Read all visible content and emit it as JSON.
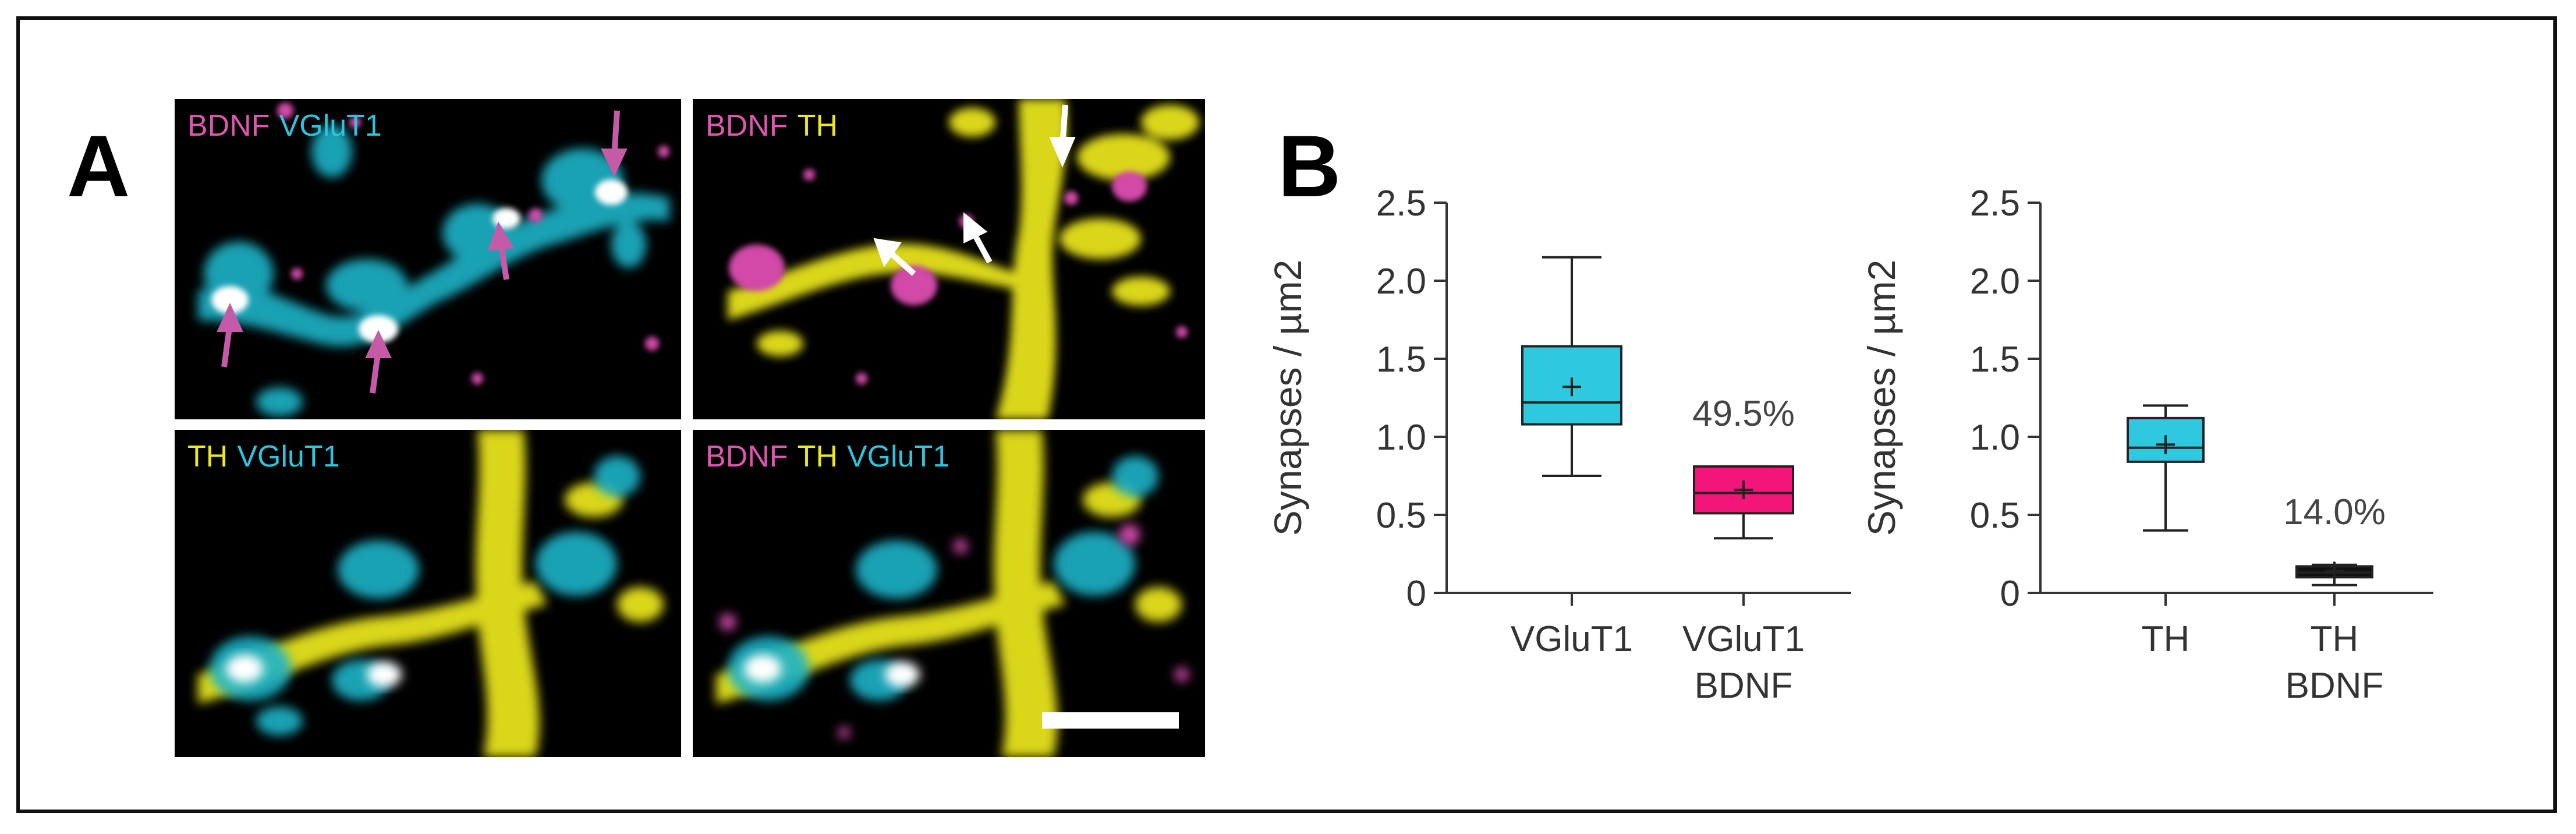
{
  "figure": {
    "panel_a_label": "A",
    "panel_b_label": "B",
    "images": [
      {
        "labels": [
          {
            "text": "BDNF",
            "color": "#e055b0"
          },
          {
            "text": "VGluT1",
            "color": "#2fc3dc"
          }
        ],
        "arrow_color": "#c45aa8"
      },
      {
        "labels": [
          {
            "text": "BDNF",
            "color": "#e055b0"
          },
          {
            "text": "TH",
            "color": "#ecea1a"
          }
        ],
        "arrow_color": "#ffffff"
      },
      {
        "labels": [
          {
            "text": "TH",
            "color": "#ecea1a"
          },
          {
            "text": "VGluT1",
            "color": "#2fc3dc"
          }
        ]
      },
      {
        "labels": [
          {
            "text": "BDNF",
            "color": "#e055b0"
          },
          {
            "text": "TH",
            "color": "#ecea1a"
          },
          {
            "text": "VGluT1",
            "color": "#2fc3dc"
          }
        ],
        "scale_bar": true
      }
    ]
  },
  "chart_data": [
    {
      "type": "box",
      "ylabel": "Synapses / µm2",
      "ylim": [
        0,
        2.5
      ],
      "yticks": [
        "0",
        "0.5",
        "1.0",
        "1.5",
        "2.0",
        "2.5"
      ],
      "categories": [
        [
          "VGluT1"
        ],
        [
          "VGluT1",
          "BDNF"
        ]
      ],
      "boxes": [
        {
          "min": 0.75,
          "q1": 1.08,
          "median": 1.22,
          "mean": 1.32,
          "q3": 1.58,
          "max": 2.15,
          "color": "#2ec8df"
        },
        {
          "min": 0.35,
          "q1": 0.51,
          "median": 0.64,
          "mean": 0.66,
          "q3": 0.81,
          "max": 0.81,
          "color": "#f2157a"
        }
      ],
      "annotation": "49.5%"
    },
    {
      "type": "box",
      "ylabel": "Synapses / µm2",
      "ylim": [
        0,
        2.5
      ],
      "yticks": [
        "0",
        "0.5",
        "1.0",
        "1.5",
        "2.0",
        "2.5"
      ],
      "categories": [
        [
          "TH"
        ],
        [
          "TH",
          "BDNF"
        ]
      ],
      "boxes": [
        {
          "min": 0.4,
          "q1": 0.84,
          "median": 0.93,
          "mean": 0.95,
          "q3": 1.12,
          "max": 1.2,
          "color": "#2ec8df"
        },
        {
          "min": 0.05,
          "q1": 0.1,
          "median": 0.13,
          "mean": 0.14,
          "q3": 0.17,
          "max": 0.18,
          "color": "#111111"
        }
      ],
      "annotation": "14.0%"
    }
  ]
}
